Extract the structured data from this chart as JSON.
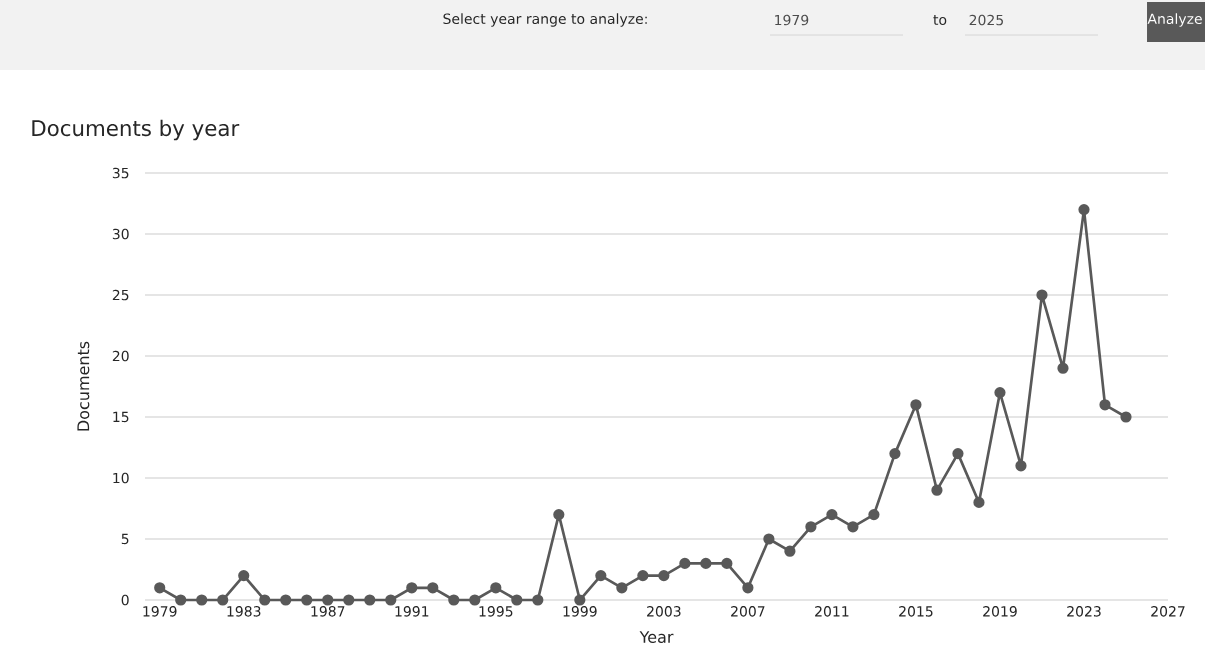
{
  "chart_data": {
    "type": "line",
    "title": "Documents by year",
    "xlabel": "Year",
    "ylabel": "Documents",
    "x": [
      1979,
      1980,
      1981,
      1982,
      1983,
      1984,
      1985,
      1986,
      1987,
      1988,
      1989,
      1990,
      1991,
      1992,
      1993,
      1994,
      1995,
      1996,
      1997,
      1998,
      1999,
      2000,
      2001,
      2002,
      2003,
      2004,
      2005,
      2006,
      2007,
      2008,
      2009,
      2010,
      2011,
      2012,
      2013,
      2014,
      2015,
      2016,
      2017,
      2018,
      2019,
      2020,
      2021,
      2022,
      2023,
      2024,
      2025
    ],
    "series": [
      {
        "color": "#595959",
        "values": [
          1,
          0,
          0,
          0,
          2,
          0,
          0,
          0,
          0,
          0,
          0,
          0,
          1,
          1,
          0,
          0,
          1,
          0,
          0,
          7,
          0,
          2,
          1,
          2,
          2,
          3,
          3,
          3,
          1,
          5,
          4,
          6,
          7,
          6,
          7,
          12,
          16,
          9,
          12,
          8,
          17,
          11,
          25,
          19,
          32,
          16,
          15
        ]
      }
    ],
    "xlim": [
      1978.3,
      2027
    ],
    "ylim": [
      0,
      35
    ],
    "xticks": [
      1979,
      1983,
      1987,
      1991,
      1995,
      1999,
      2003,
      2007,
      2011,
      2015,
      2019,
      2023,
      2027
    ],
    "yticks": [
      0,
      5,
      10,
      15,
      20,
      25,
      30,
      35
    ],
    "grid": "y",
    "marker": "circle",
    "line_style": "solid",
    "annotations": [
      "Select year range to analyze:",
      "1979",
      "to",
      "2025",
      "Analyze"
    ]
  }
}
